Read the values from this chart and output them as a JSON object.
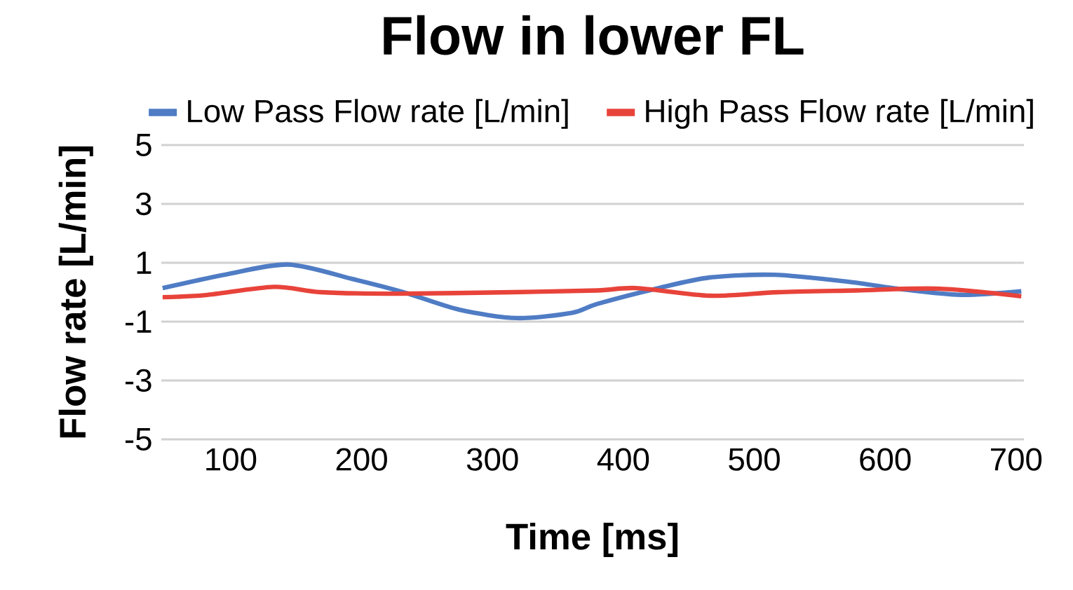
{
  "chart_data": {
    "type": "line",
    "title": "Flow in lower FL",
    "xlabel": "Time [ms]",
    "ylabel": "Flow rate [L/min]",
    "xlim": [
      47,
      706
    ],
    "xticks": [
      100,
      200,
      300,
      400,
      500,
      600,
      700
    ],
    "ylim": [
      -5,
      5
    ],
    "yticks": [
      -5,
      -3,
      -1,
      1,
      3,
      5
    ],
    "grid": "y",
    "legend": "top",
    "series": [
      {
        "name": "Low Pass Flow rate [L/min]",
        "color": "#4f7cc4",
        "x": [
          48,
          96,
          144,
          193,
          232,
          275,
          319,
          361,
          380,
          427,
          466,
          515,
          571,
          613,
          658,
          704
        ],
        "values": [
          0.14,
          0.6,
          0.94,
          0.45,
          0.0,
          -0.6,
          -0.88,
          -0.7,
          -0.4,
          0.14,
          0.5,
          0.59,
          0.36,
          0.1,
          -0.09,
          0.03
        ]
      },
      {
        "name": "High Pass Flow rate [L/min]",
        "color": "#e8433a",
        "x": [
          48,
          81,
          133,
          169,
          228,
          315,
          380,
          410,
          466,
          518,
          578,
          640,
          704
        ],
        "values": [
          -0.17,
          -0.1,
          0.18,
          0.0,
          -0.05,
          0.0,
          0.06,
          0.14,
          -0.12,
          0.0,
          0.06,
          0.12,
          -0.14
        ]
      }
    ]
  }
}
